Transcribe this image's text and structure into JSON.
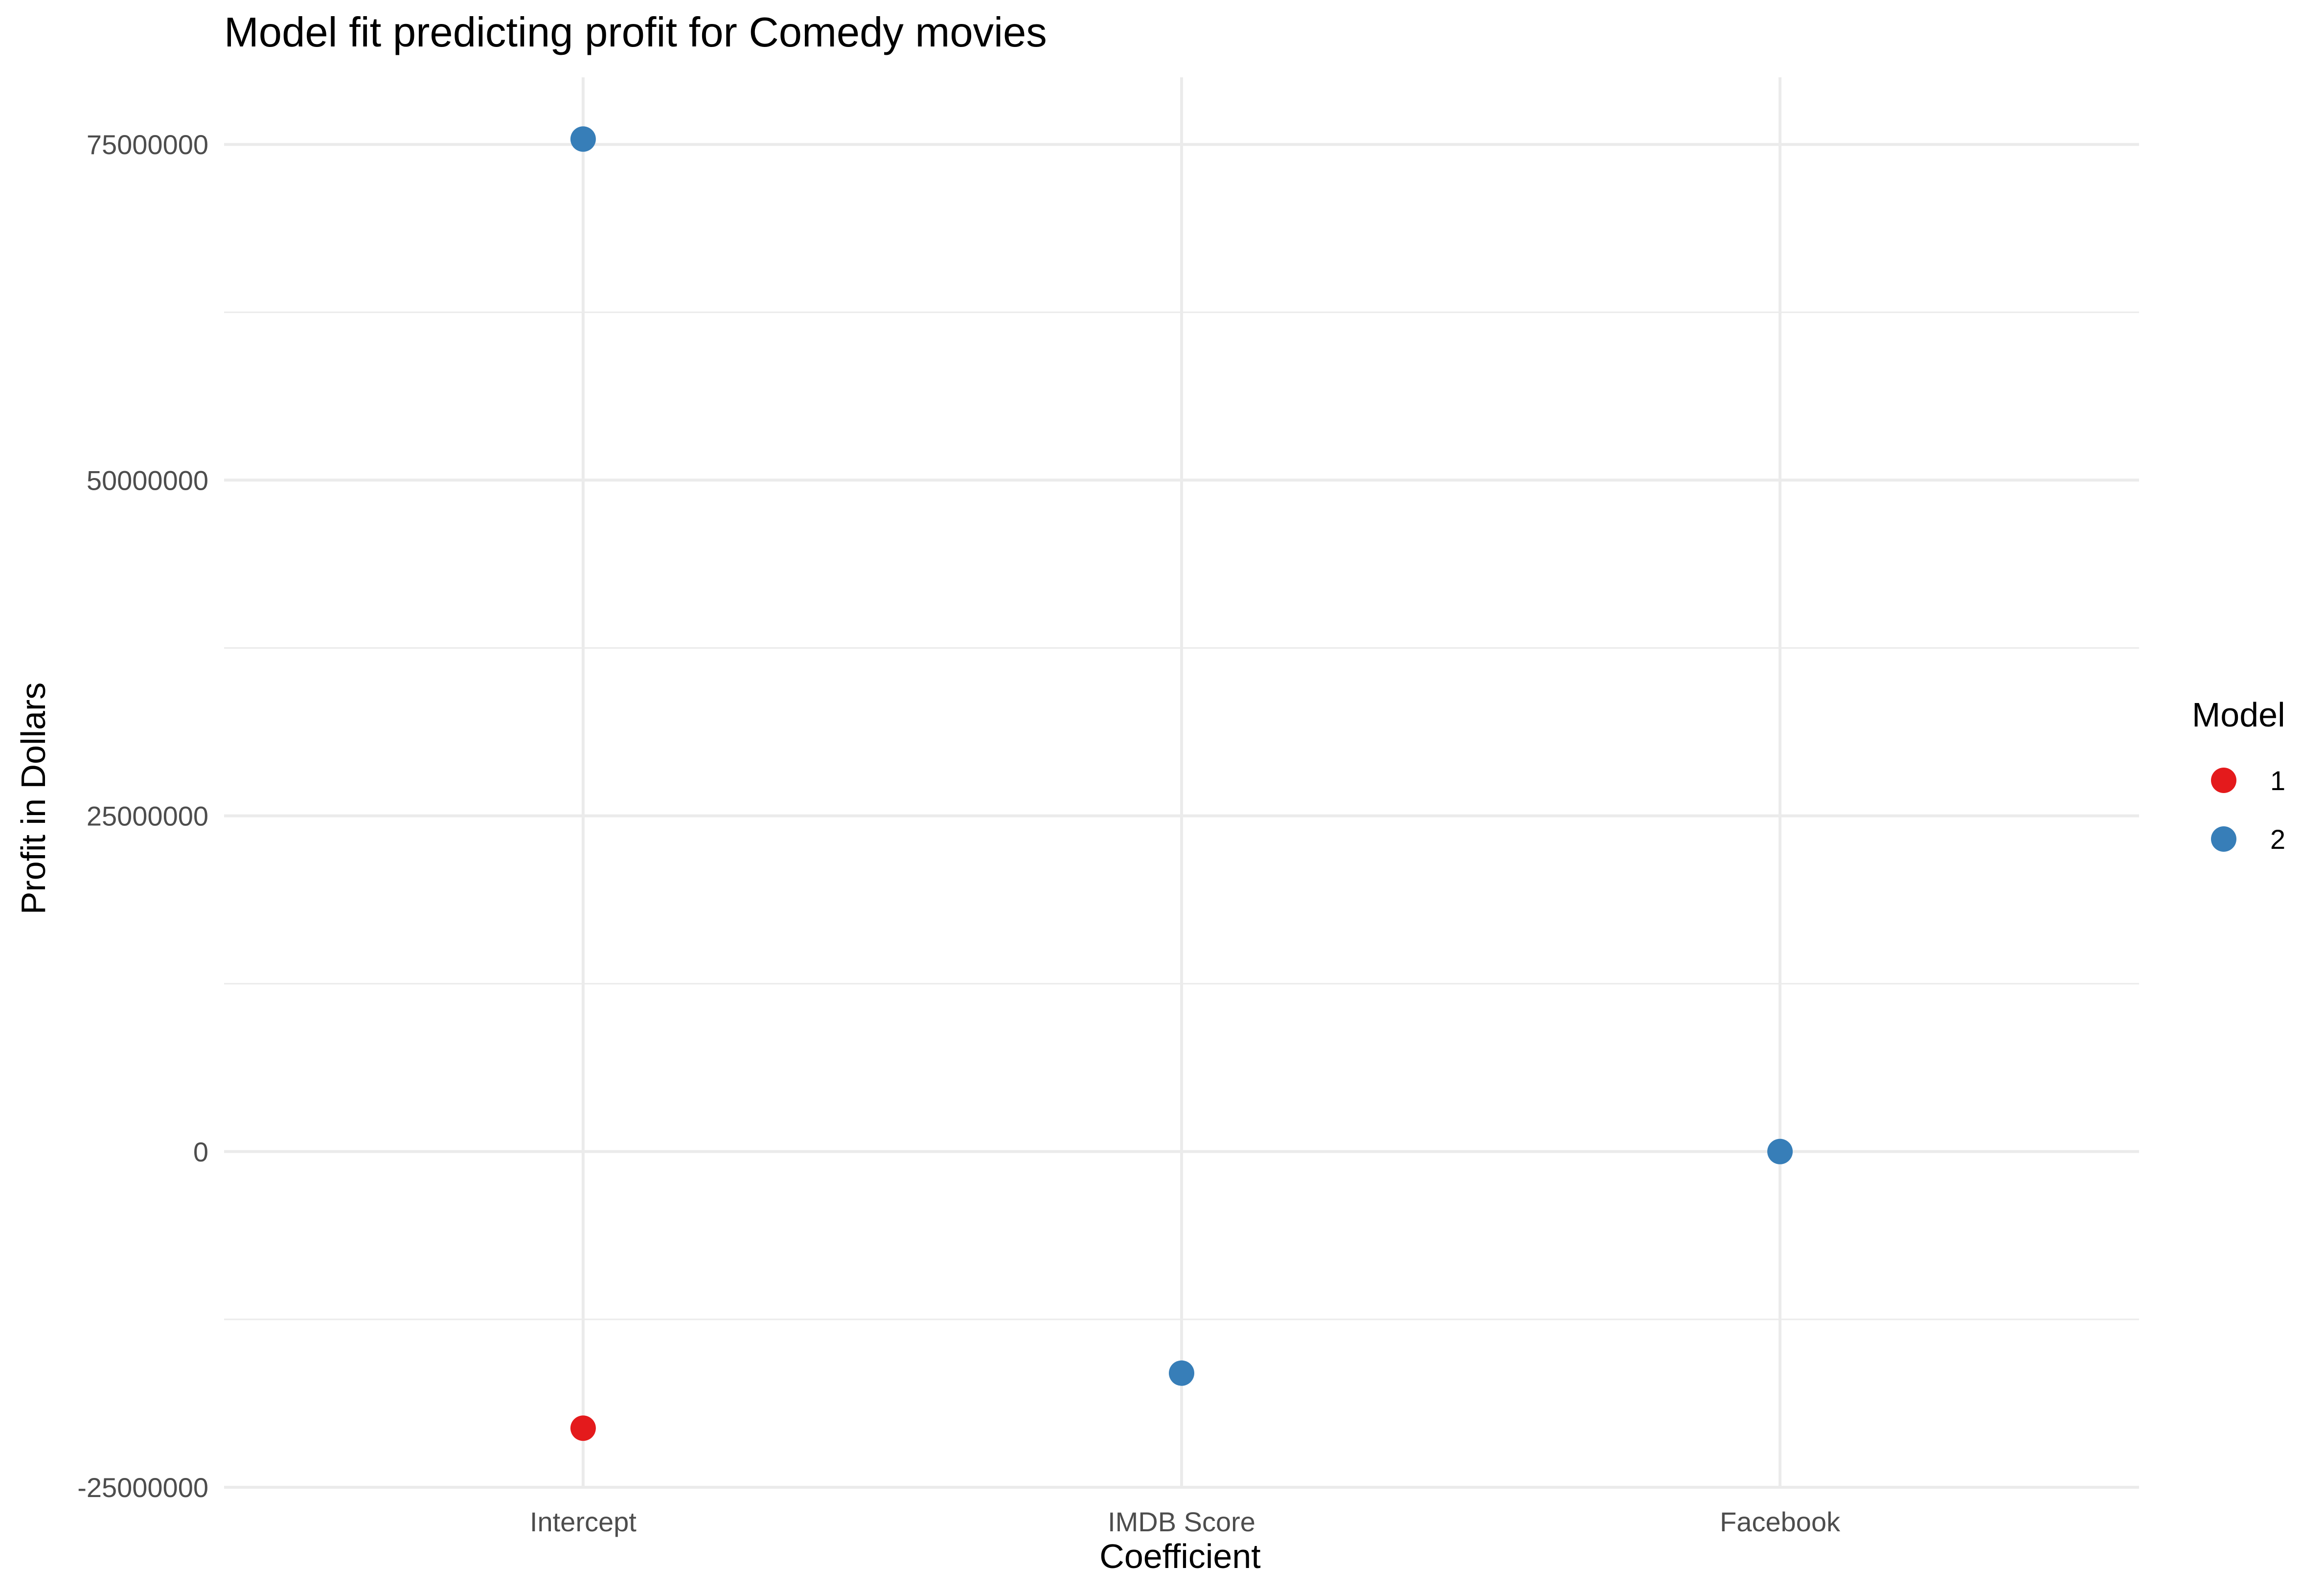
{
  "chart_data": {
    "type": "scatter",
    "title": "Model fit predicting profit for Comedy movies",
    "xlabel": "Coefficient",
    "ylabel": "Profit in Dollars",
    "categories": [
      "Intercept",
      "IMDB Score",
      "Facebook"
    ],
    "ylim": [
      -25000000,
      80000000
    ],
    "yticks": [
      -25000000,
      0,
      25000000,
      50000000,
      75000000
    ],
    "ytick_labels": [
      "-25000000",
      "0",
      "25000000",
      "50000000",
      "75000000"
    ],
    "grid": true,
    "legend": {
      "title": "Model",
      "placement": "right"
    },
    "series": [
      {
        "name": "1",
        "color": "#e41a1c",
        "points": [
          {
            "x": "Intercept",
            "y": -20600000
          }
        ]
      },
      {
        "name": "2",
        "color": "#377eb8",
        "points": [
          {
            "x": "Intercept",
            "y": 75400000
          },
          {
            "x": "IMDB Score",
            "y": -16500000
          },
          {
            "x": "Facebook",
            "y": 0
          }
        ]
      }
    ]
  }
}
